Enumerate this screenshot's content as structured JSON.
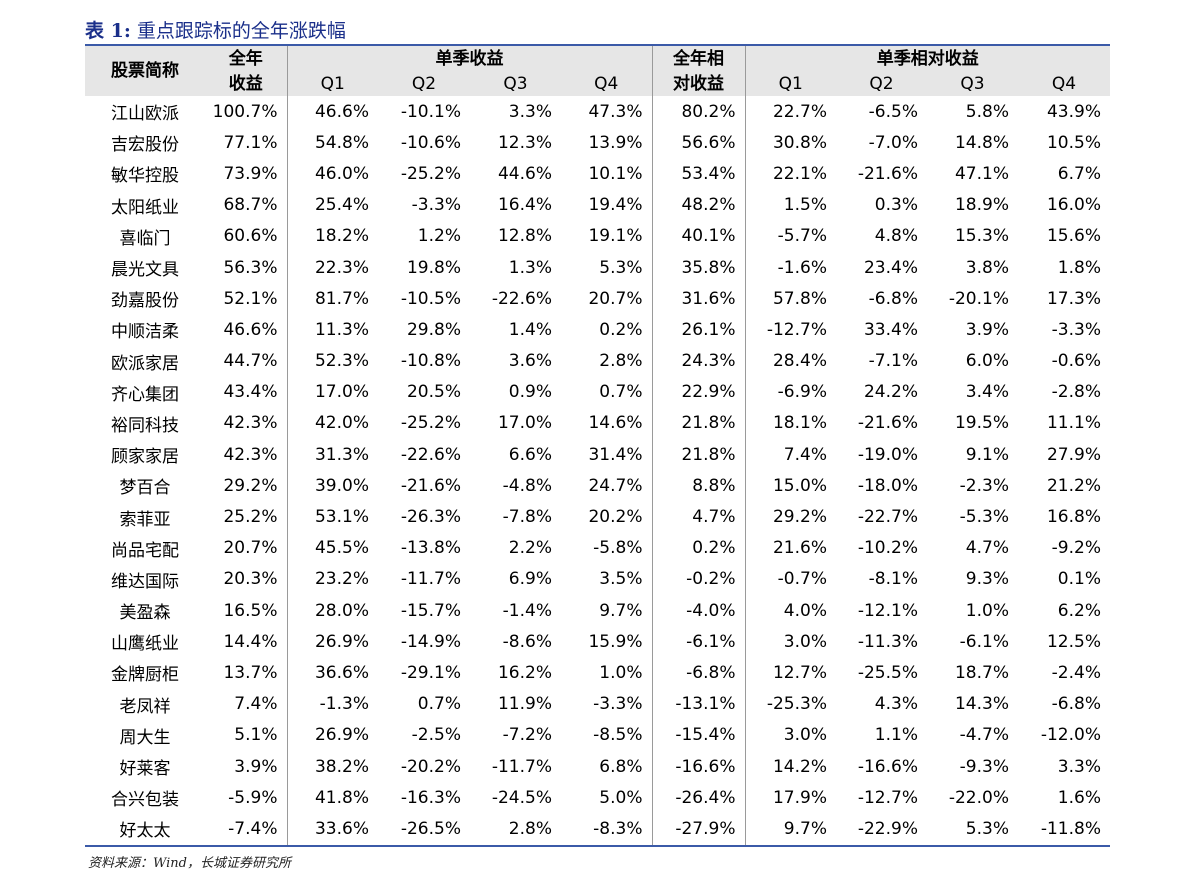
{
  "title": {
    "label": "表 1:",
    "text": "重点跟踪标的全年涨跌幅"
  },
  "table": {
    "header": {
      "stock": "股票简称",
      "annual": [
        "全年",
        "收益"
      ],
      "quarterly": "单季收益",
      "annual_rel": [
        "全年相",
        "对收益"
      ],
      "quarterly_rel": "单季相对收益",
      "quarters": [
        "Q1",
        "Q2",
        "Q3",
        "Q4"
      ]
    },
    "rows": [
      [
        "江山欧派",
        "100.7%",
        "46.6%",
        "-10.1%",
        "3.3%",
        "47.3%",
        "80.2%",
        "22.7%",
        "-6.5%",
        "5.8%",
        "43.9%"
      ],
      [
        "吉宏股份",
        "77.1%",
        "54.8%",
        "-10.6%",
        "12.3%",
        "13.9%",
        "56.6%",
        "30.8%",
        "-7.0%",
        "14.8%",
        "10.5%"
      ],
      [
        "敏华控股",
        "73.9%",
        "46.0%",
        "-25.2%",
        "44.6%",
        "10.1%",
        "53.4%",
        "22.1%",
        "-21.6%",
        "47.1%",
        "6.7%"
      ],
      [
        "太阳纸业",
        "68.7%",
        "25.4%",
        "-3.3%",
        "16.4%",
        "19.4%",
        "48.2%",
        "1.5%",
        "0.3%",
        "18.9%",
        "16.0%"
      ],
      [
        "喜临门",
        "60.6%",
        "18.2%",
        "1.2%",
        "12.8%",
        "19.1%",
        "40.1%",
        "-5.7%",
        "4.8%",
        "15.3%",
        "15.6%"
      ],
      [
        "晨光文具",
        "56.3%",
        "22.3%",
        "19.8%",
        "1.3%",
        "5.3%",
        "35.8%",
        "-1.6%",
        "23.4%",
        "3.8%",
        "1.8%"
      ],
      [
        "劲嘉股份",
        "52.1%",
        "81.7%",
        "-10.5%",
        "-22.6%",
        "20.7%",
        "31.6%",
        "57.8%",
        "-6.8%",
        "-20.1%",
        "17.3%"
      ],
      [
        "中顺洁柔",
        "46.6%",
        "11.3%",
        "29.8%",
        "1.4%",
        "0.2%",
        "26.1%",
        "-12.7%",
        "33.4%",
        "3.9%",
        "-3.3%"
      ],
      [
        "欧派家居",
        "44.7%",
        "52.3%",
        "-10.8%",
        "3.6%",
        "2.8%",
        "24.3%",
        "28.4%",
        "-7.1%",
        "6.0%",
        "-0.6%"
      ],
      [
        "齐心集团",
        "43.4%",
        "17.0%",
        "20.5%",
        "0.9%",
        "0.7%",
        "22.9%",
        "-6.9%",
        "24.2%",
        "3.4%",
        "-2.8%"
      ],
      [
        "裕同科技",
        "42.3%",
        "42.0%",
        "-25.2%",
        "17.0%",
        "14.6%",
        "21.8%",
        "18.1%",
        "-21.6%",
        "19.5%",
        "11.1%"
      ],
      [
        "顾家家居",
        "42.3%",
        "31.3%",
        "-22.6%",
        "6.6%",
        "31.4%",
        "21.8%",
        "7.4%",
        "-19.0%",
        "9.1%",
        "27.9%"
      ],
      [
        "梦百合",
        "29.2%",
        "39.0%",
        "-21.6%",
        "-4.8%",
        "24.7%",
        "8.8%",
        "15.0%",
        "-18.0%",
        "-2.3%",
        "21.2%"
      ],
      [
        "索菲亚",
        "25.2%",
        "53.1%",
        "-26.3%",
        "-7.8%",
        "20.2%",
        "4.7%",
        "29.2%",
        "-22.7%",
        "-5.3%",
        "16.8%"
      ],
      [
        "尚品宅配",
        "20.7%",
        "45.5%",
        "-13.8%",
        "2.2%",
        "-5.8%",
        "0.2%",
        "21.6%",
        "-10.2%",
        "4.7%",
        "-9.2%"
      ],
      [
        "维达国际",
        "20.3%",
        "23.2%",
        "-11.7%",
        "6.9%",
        "3.5%",
        "-0.2%",
        "-0.7%",
        "-8.1%",
        "9.3%",
        "0.1%"
      ],
      [
        "美盈森",
        "16.5%",
        "28.0%",
        "-15.7%",
        "-1.4%",
        "9.7%",
        "-4.0%",
        "4.0%",
        "-12.1%",
        "1.0%",
        "6.2%"
      ],
      [
        "山鹰纸业",
        "14.4%",
        "26.9%",
        "-14.9%",
        "-8.6%",
        "15.9%",
        "-6.1%",
        "3.0%",
        "-11.3%",
        "-6.1%",
        "12.5%"
      ],
      [
        "金牌厨柜",
        "13.7%",
        "36.6%",
        "-29.1%",
        "16.2%",
        "1.0%",
        "-6.8%",
        "12.7%",
        "-25.5%",
        "18.7%",
        "-2.4%"
      ],
      [
        "老凤祥",
        "7.4%",
        "-1.3%",
        "0.7%",
        "11.9%",
        "-3.3%",
        "-13.1%",
        "-25.3%",
        "4.3%",
        "14.3%",
        "-6.8%"
      ],
      [
        "周大生",
        "5.1%",
        "26.9%",
        "-2.5%",
        "-7.2%",
        "-8.5%",
        "-15.4%",
        "3.0%",
        "1.1%",
        "-4.7%",
        "-12.0%"
      ],
      [
        "好莱客",
        "3.9%",
        "38.2%",
        "-20.2%",
        "-11.7%",
        "6.8%",
        "-16.6%",
        "14.2%",
        "-16.6%",
        "-9.3%",
        "3.3%"
      ],
      [
        "合兴包装",
        "-5.9%",
        "41.8%",
        "-16.3%",
        "-24.5%",
        "5.0%",
        "-26.4%",
        "17.9%",
        "-12.7%",
        "-22.0%",
        "1.6%"
      ],
      [
        "好太太",
        "-7.4%",
        "33.6%",
        "-26.5%",
        "2.8%",
        "-8.3%",
        "-27.9%",
        "9.7%",
        "-22.9%",
        "5.3%",
        "-11.8%"
      ]
    ]
  },
  "source": "资料来源：Wind，长城证券研究所"
}
